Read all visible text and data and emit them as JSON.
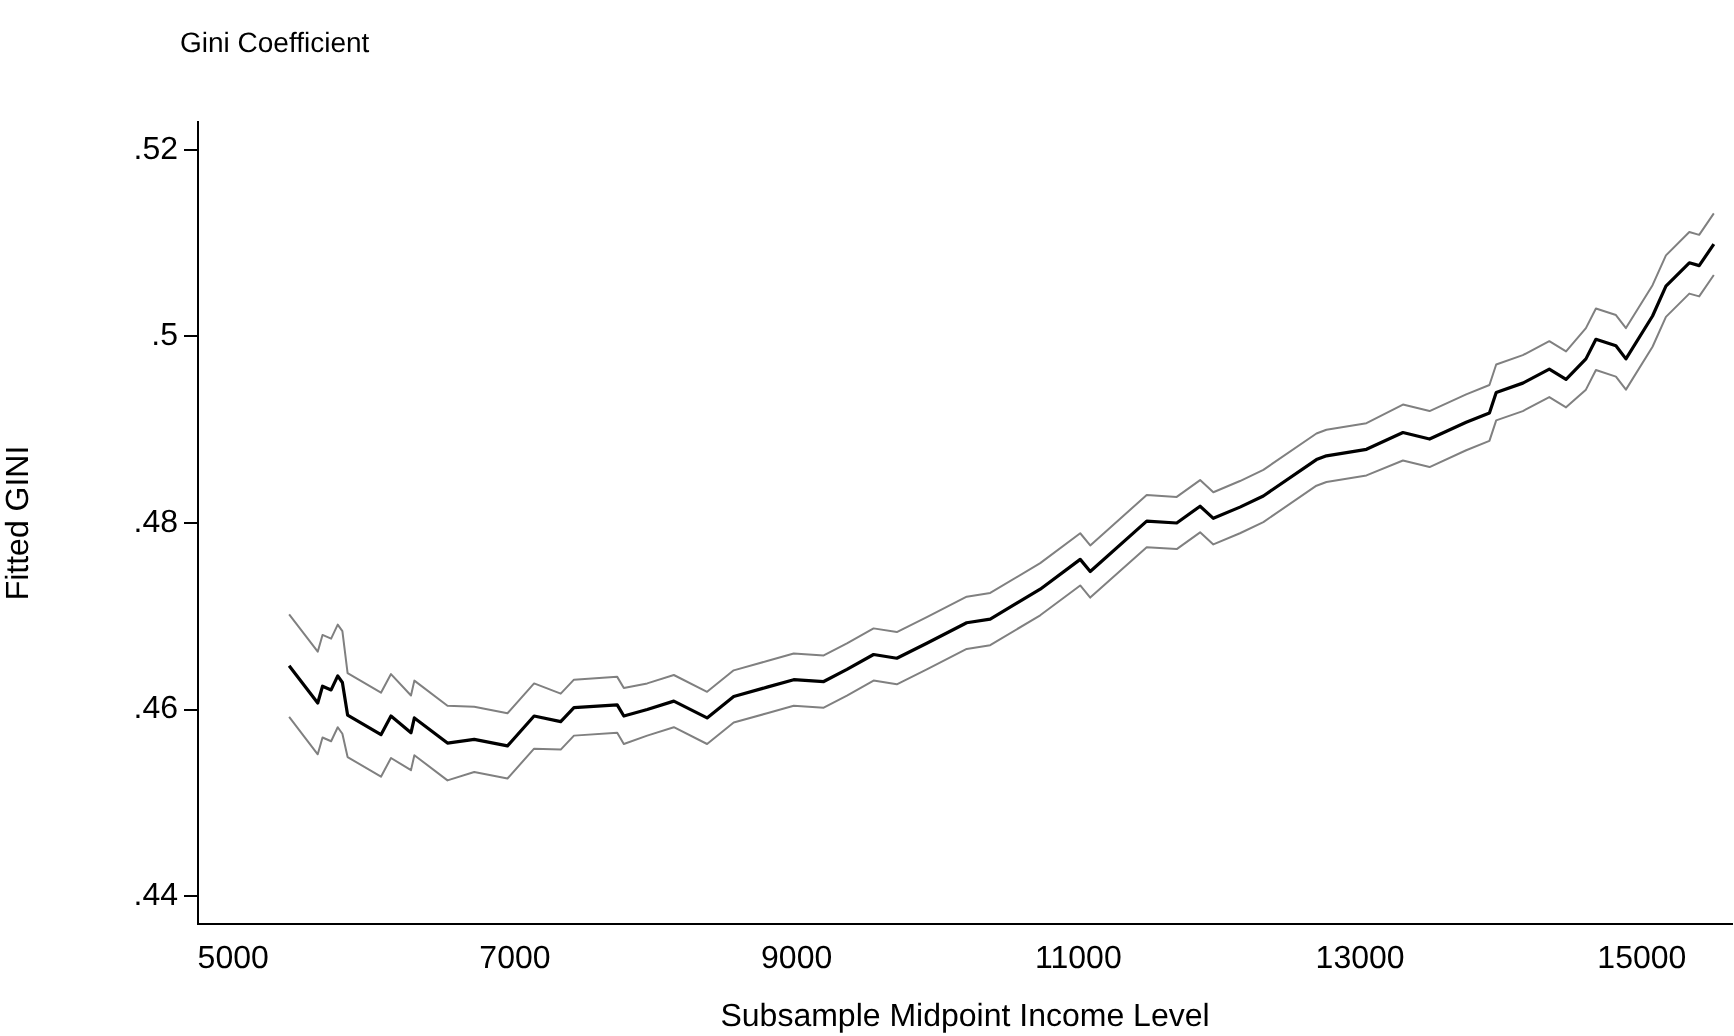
{
  "chart_data": {
    "type": "line",
    "title": "Gini Coefficient",
    "xlabel": "Subsample Midpoint Income Level",
    "ylabel": "Fitted GINI",
    "x": [
      5397,
      5600,
      5634,
      5695,
      5742,
      5775,
      5812,
      6049,
      6120,
      6262,
      6286,
      6521,
      6711,
      6947,
      7136,
      7325,
      7419,
      7726,
      7773,
      7939,
      8128,
      8364,
      8553,
      8790,
      8979,
      9192,
      9357,
      9546,
      9711,
      9924,
      10207,
      10374,
      10729,
      11013,
      11084,
      11485,
      11698,
      11864,
      11958,
      12147,
      12313,
      12690,
      12761,
      13045,
      13304,
      13493,
      13753,
      13918,
      13966,
      14155,
      14343,
      14462,
      14603,
      14674,
      14816,
      14887,
      15076,
      15171,
      15337,
      15407,
      15511
    ],
    "series": [
      {
        "color": "#808080",
        "values": [
          0.4702,
          0.4662,
          0.468,
          0.4676,
          0.4691,
          0.4684,
          0.4639,
          0.4618,
          0.4638,
          0.4615,
          0.4631,
          0.4604,
          0.4603,
          0.4596,
          0.4628,
          0.4617,
          0.4632,
          0.4635,
          0.4623,
          0.4628,
          0.4637,
          0.4619,
          0.4642,
          0.4652,
          0.466,
          0.4658,
          0.4671,
          0.4687,
          0.4683,
          0.4699,
          0.4721,
          0.4725,
          0.4757,
          0.4789,
          0.4776,
          0.483,
          0.4828,
          0.4846,
          0.4833,
          0.4845,
          0.4857,
          0.4896,
          0.49,
          0.4907,
          0.4927,
          0.492,
          0.4938,
          0.4948,
          0.497,
          0.498,
          0.4995,
          0.4984,
          0.5009,
          0.503,
          0.5023,
          0.5009,
          0.5055,
          0.5087,
          0.5112,
          0.5109,
          0.5132
        ]
      },
      {
        "color": "#000000",
        "values": [
          0.4647,
          0.4607,
          0.4625,
          0.4621,
          0.4636,
          0.4629,
          0.4594,
          0.4573,
          0.4593,
          0.4575,
          0.4591,
          0.4564,
          0.4568,
          0.4561,
          0.4593,
          0.4587,
          0.4602,
          0.4605,
          0.4593,
          0.46,
          0.4609,
          0.4591,
          0.4614,
          0.4624,
          0.4632,
          0.463,
          0.4643,
          0.4659,
          0.4655,
          0.4671,
          0.4693,
          0.4697,
          0.4729,
          0.4761,
          0.4748,
          0.4802,
          0.48,
          0.4818,
          0.4805,
          0.4817,
          0.4829,
          0.4868,
          0.4872,
          0.4879,
          0.4897,
          0.489,
          0.4908,
          0.4918,
          0.494,
          0.495,
          0.4965,
          0.4954,
          0.4976,
          0.4997,
          0.499,
          0.4976,
          0.5022,
          0.5054,
          0.5079,
          0.5076,
          0.5099
        ]
      },
      {
        "color": "#808080",
        "values": [
          0.4592,
          0.4552,
          0.457,
          0.4566,
          0.4581,
          0.4574,
          0.4549,
          0.4528,
          0.4548,
          0.4535,
          0.4551,
          0.4524,
          0.4533,
          0.4526,
          0.4558,
          0.4557,
          0.4572,
          0.4575,
          0.4563,
          0.4572,
          0.4581,
          0.4563,
          0.4586,
          0.4596,
          0.4604,
          0.4602,
          0.4615,
          0.4631,
          0.4627,
          0.4643,
          0.4665,
          0.4669,
          0.4701,
          0.4733,
          0.472,
          0.4774,
          0.4772,
          0.479,
          0.4777,
          0.4789,
          0.4801,
          0.484,
          0.4844,
          0.4851,
          0.4867,
          0.486,
          0.4878,
          0.4888,
          0.491,
          0.492,
          0.4935,
          0.4924,
          0.4943,
          0.4964,
          0.4957,
          0.4943,
          0.4989,
          0.5021,
          0.5046,
          0.5043,
          0.5066
        ]
      }
    ],
    "xlim": [
      4750,
      15640
    ],
    "xticks": [
      5000,
      7000,
      9000,
      11000,
      13000,
      15000
    ],
    "ylim": [
      0.437,
      0.523
    ],
    "yticks": [
      {
        "value": 0.44,
        "label": ".44"
      },
      {
        "value": 0.46,
        "label": ".46"
      },
      {
        "value": 0.48,
        "label": ".48"
      },
      {
        "value": 0.5,
        "label": ".5"
      },
      {
        "value": 0.52,
        "label": ".52"
      }
    ],
    "grid": false,
    "legend": false
  }
}
